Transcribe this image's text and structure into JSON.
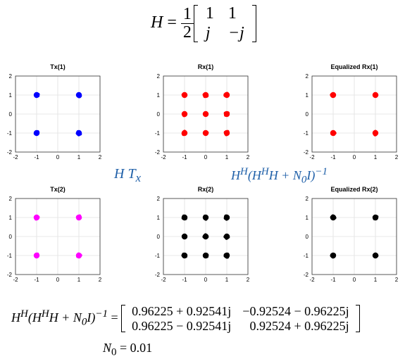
{
  "equation_h": {
    "lhs": "H",
    "equals": "=",
    "frac_num": "1",
    "frac_den": "2",
    "rows": [
      [
        "1",
        "1"
      ],
      [
        "j",
        "−j"
      ]
    ]
  },
  "label_htx": {
    "h": "H",
    "t": "T",
    "sub": "x"
  },
  "label_equalizer": {
    "text": "H",
    "sup1": "H",
    "mid": "(H",
    "sup2": "H",
    "tail": "H + ",
    "n": "N",
    "nsub": "0",
    "i": "I)",
    "sup3": "−1"
  },
  "equation_bottom": {
    "lhs_text": "H",
    "sup1": "H",
    "mid": "(H",
    "sup2": "H",
    "tail": "H + ",
    "n": "N",
    "nsub": "0",
    "i": "I)",
    "sup3": "−1",
    "equals": "=",
    "rows": [
      [
        "0.96225 + 0.92541j",
        "−0.92524 − 0.96225j"
      ],
      [
        "0.96225 − 0.92541j",
        "0.92524 + 0.96225j"
      ]
    ]
  },
  "n0": {
    "n": "N",
    "sub": "0",
    "value": " = 0.01"
  },
  "colors": {
    "blue": "#0000ff",
    "red": "#ff0000",
    "magenta": "#ff00ff",
    "black": "#000000",
    "grid": "#e0e0e0"
  },
  "chart_data": [
    {
      "type": "scatter",
      "title": "Tx(1)",
      "color": "#0000ff",
      "xlim": [
        -2,
        2
      ],
      "ylim": [
        -2,
        2
      ],
      "xticks": [
        -2,
        -1,
        0,
        1,
        2
      ],
      "yticks": [
        -2,
        -1,
        0,
        1,
        2
      ],
      "grid": true,
      "points": [
        [
          -1,
          1
        ],
        [
          1,
          1
        ],
        [
          -1,
          -1
        ],
        [
          1,
          -1
        ]
      ]
    },
    {
      "type": "scatter",
      "title": "Rx(1)",
      "color": "#ff0000",
      "xlim": [
        -2,
        2
      ],
      "ylim": [
        -2,
        2
      ],
      "xticks": [
        -2,
        -1,
        0,
        1,
        2
      ],
      "yticks": [
        -2,
        -1,
        0,
        1,
        2
      ],
      "grid": true,
      "points": [
        [
          -1,
          1
        ],
        [
          0,
          1
        ],
        [
          1,
          1
        ],
        [
          -1,
          0
        ],
        [
          0,
          0
        ],
        [
          1,
          0
        ],
        [
          -1,
          -1
        ],
        [
          0,
          -1
        ],
        [
          1,
          -1
        ]
      ]
    },
    {
      "type": "scatter",
      "title": "Equalized Rx(1)",
      "color": "#ff0000",
      "xlim": [
        -2,
        2
      ],
      "ylim": [
        -2,
        2
      ],
      "xticks": [
        -2,
        -1,
        0,
        1,
        2
      ],
      "yticks": [
        -2,
        -1,
        0,
        1,
        2
      ],
      "grid": true,
      "points": [
        [
          -1,
          1
        ],
        [
          1,
          1
        ],
        [
          -1,
          -1
        ],
        [
          1,
          -1
        ]
      ]
    },
    {
      "type": "scatter",
      "title": "Tx(2)",
      "color": "#ff00ff",
      "xlim": [
        -2,
        2
      ],
      "ylim": [
        -2,
        2
      ],
      "xticks": [
        -2,
        -1,
        0,
        1,
        2
      ],
      "yticks": [
        -2,
        -1,
        0,
        1,
        2
      ],
      "grid": true,
      "points": [
        [
          -1,
          1
        ],
        [
          1,
          1
        ],
        [
          -1,
          -1
        ],
        [
          1,
          -1
        ]
      ]
    },
    {
      "type": "scatter",
      "title": "Rx(2)",
      "color": "#000000",
      "xlim": [
        -2,
        2
      ],
      "ylim": [
        -2,
        2
      ],
      "xticks": [
        -2,
        -1,
        0,
        1,
        2
      ],
      "yticks": [
        -2,
        -1,
        0,
        1,
        2
      ],
      "grid": true,
      "points": [
        [
          -1,
          1
        ],
        [
          0,
          1
        ],
        [
          1,
          1
        ],
        [
          -1,
          0
        ],
        [
          0,
          0
        ],
        [
          1,
          0
        ],
        [
          -1,
          -1
        ],
        [
          0,
          -1
        ],
        [
          1,
          -1
        ]
      ]
    },
    {
      "type": "scatter",
      "title": "Equalized Rx(2)",
      "color": "#000000",
      "xlim": [
        -2,
        2
      ],
      "ylim": [
        -2,
        2
      ],
      "xticks": [
        -2,
        -1,
        0,
        1,
        2
      ],
      "yticks": [
        -2,
        -1,
        0,
        1,
        2
      ],
      "grid": true,
      "points": [
        [
          -1,
          1
        ],
        [
          1,
          1
        ],
        [
          -1,
          -1
        ],
        [
          1,
          -1
        ]
      ]
    }
  ]
}
